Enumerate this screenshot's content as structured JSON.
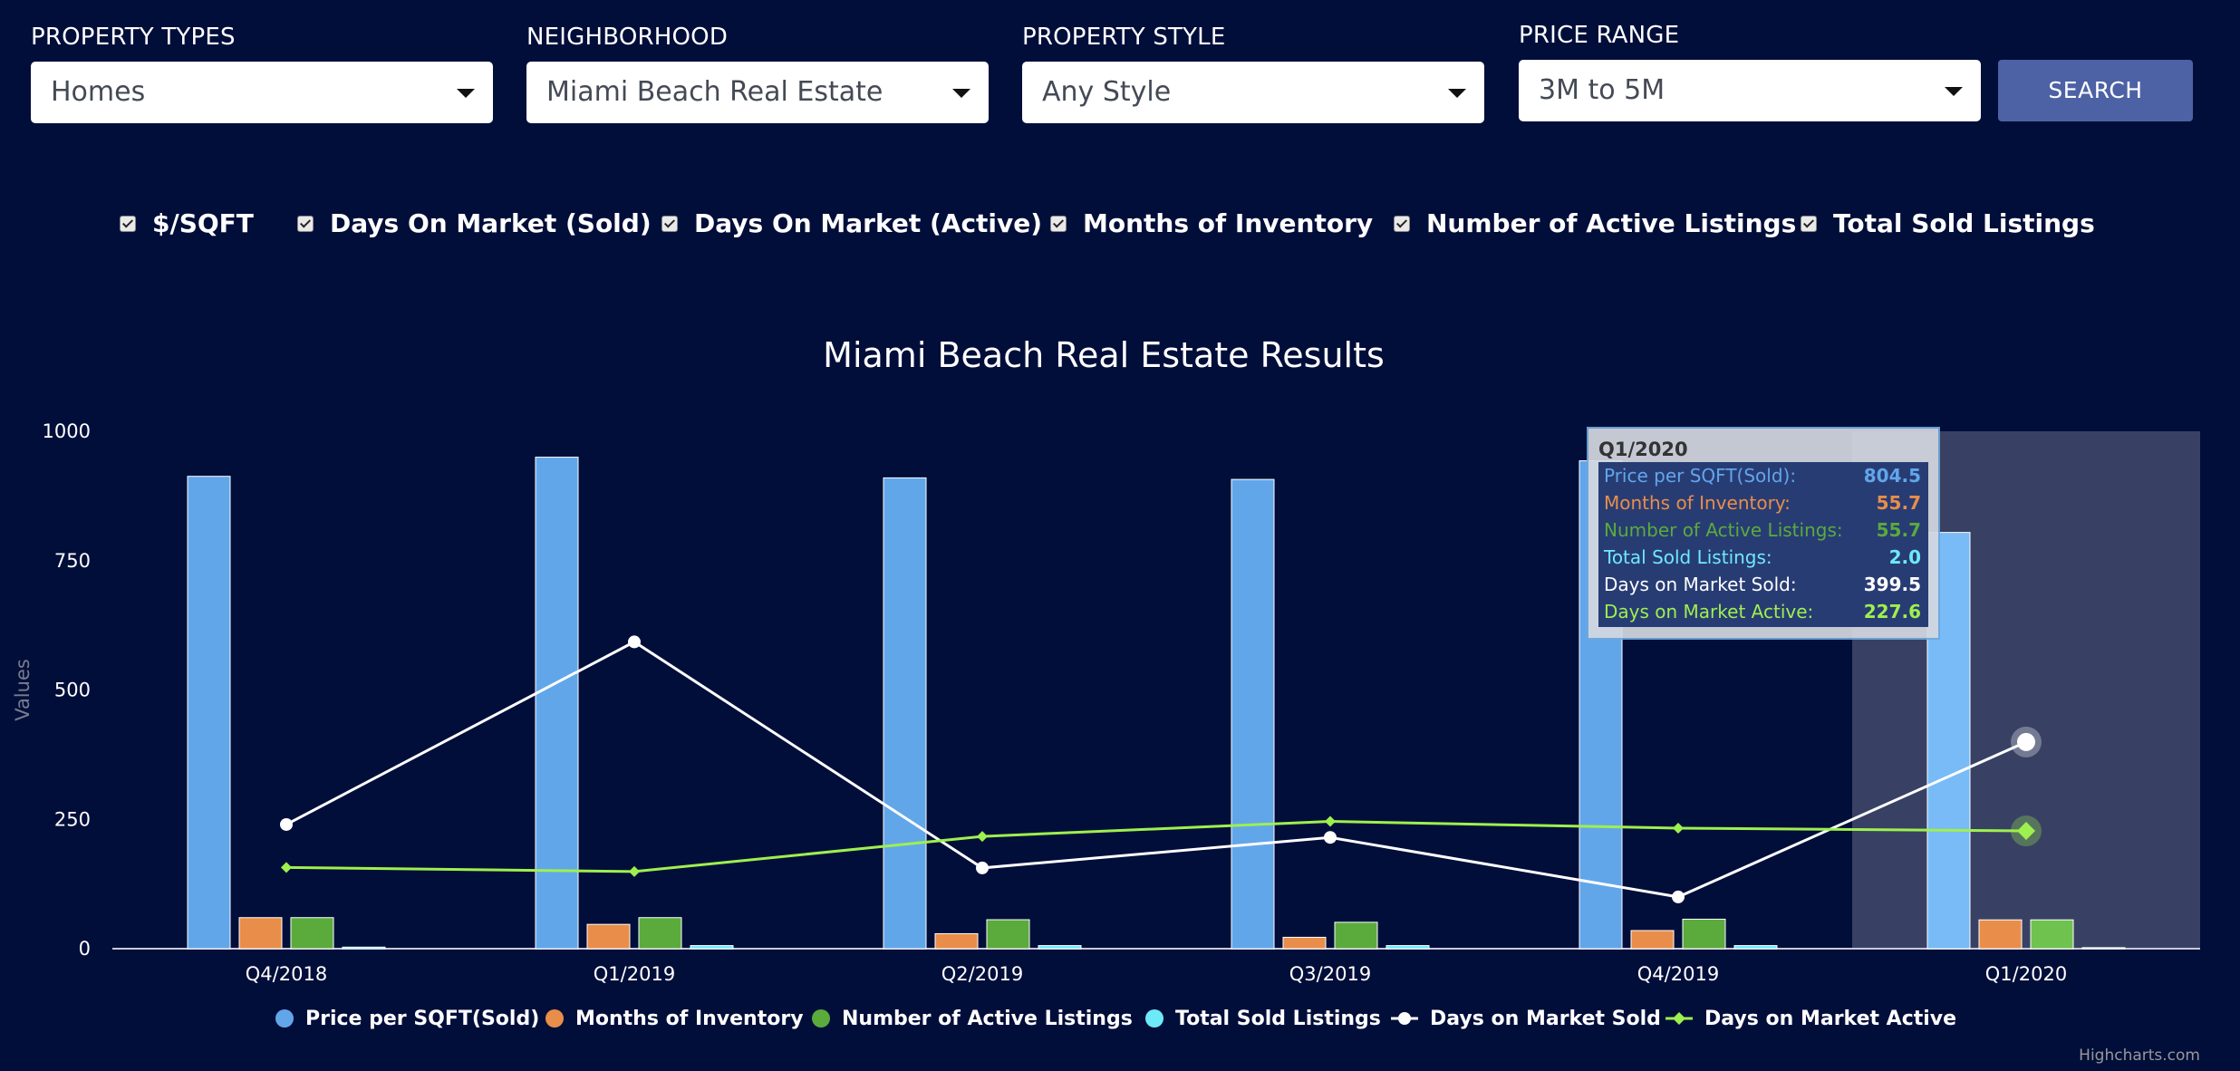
{
  "filters": [
    {
      "label": "PROPERTY TYPES",
      "value": "Homes"
    },
    {
      "label": "NEIGHBORHOOD",
      "value": "Miami Beach Real Estate"
    },
    {
      "label": "PROPERTY STYLE",
      "value": "Any Style"
    },
    {
      "label": "PRICE RANGE",
      "value": "3M to 5M"
    }
  ],
  "search_label": "SEARCH",
  "checkboxes": [
    "$/SQFT",
    "Days On Market (Sold)",
    "Days On Market (Active)",
    "Months of Inventory",
    "Number of Active Listings",
    "Total Sold Listings"
  ],
  "credit": "Highcharts.com",
  "colors": {
    "price": "#62a6ea",
    "months": "#e88e4a",
    "active": "#5aab3c",
    "sold": "#6ee9f7",
    "dom_sold": "#ffffff",
    "dom_active": "#9ef04e",
    "background": "#020e3a"
  },
  "chart_data": {
    "type": "bar",
    "title": "Miami Beach Real Estate Results",
    "ylabel": "Values",
    "xlabel": "",
    "ylim": [
      0,
      1000
    ],
    "yticks": [
      0,
      250,
      500,
      750,
      1000
    ],
    "categories": [
      "Q4/2018",
      "Q1/2019",
      "Q2/2019",
      "Q3/2019",
      "Q4/2019",
      "Q1/2020"
    ],
    "bar_series": [
      {
        "name": "Price per SQFT(Sold)",
        "color": "#62a6ea",
        "values": [
          913,
          950,
          910,
          907,
          943,
          804.5
        ]
      },
      {
        "name": "Months of Inventory",
        "color": "#e88e4a",
        "values": [
          60,
          47,
          29,
          22,
          35,
          55.7
        ]
      },
      {
        "name": "Number of Active Listings",
        "color": "#5aab3c",
        "values": [
          60,
          60,
          56,
          51,
          57,
          55.7
        ]
      },
      {
        "name": "Total Sold Listings",
        "color": "#6ee9f7",
        "values": [
          3,
          6,
          6,
          6,
          6,
          2.0
        ]
      }
    ],
    "line_series": [
      {
        "name": "Days on Market Sold",
        "color": "#ffffff",
        "values": [
          240,
          593,
          156,
          215,
          100,
          399.5
        ]
      },
      {
        "name": "Days on Market Active",
        "color": "#9ef04e",
        "values": [
          157,
          149,
          217,
          246,
          233,
          227.6
        ]
      }
    ],
    "highlight_index": 5,
    "tooltip": {
      "title": "Q1/2020",
      "rows": [
        {
          "label": "Price per SQFT(Sold):",
          "value": "804.5",
          "color": "#62a6ea"
        },
        {
          "label": "Months of Inventory:",
          "value": "55.7",
          "color": "#e88e4a"
        },
        {
          "label": "Number of Active Listings:",
          "value": "55.7",
          "color": "#5aab3c"
        },
        {
          "label": "Total Sold Listings:",
          "value": "2.0",
          "color": "#6ee9f7"
        },
        {
          "label": "Days on Market Sold:",
          "value": "399.5",
          "color": "#ffffff"
        },
        {
          "label": "Days on Market Active:",
          "value": "227.6",
          "color": "#9ef04e"
        }
      ]
    },
    "legend": [
      {
        "name": "Price per SQFT(Sold)",
        "color": "#62a6ea",
        "marker": "circle"
      },
      {
        "name": "Months of Inventory",
        "color": "#e88e4a",
        "marker": "circle"
      },
      {
        "name": "Number of Active Listings",
        "color": "#5aab3c",
        "marker": "circle"
      },
      {
        "name": "Total Sold Listings",
        "color": "#6ee9f7",
        "marker": "circle"
      },
      {
        "name": "Days on Market Sold",
        "color": "#ffffff",
        "marker": "line-circle"
      },
      {
        "name": "Days on Market Active",
        "color": "#9ef04e",
        "marker": "line-diamond"
      }
    ],
    "legend_position": "bottom"
  }
}
